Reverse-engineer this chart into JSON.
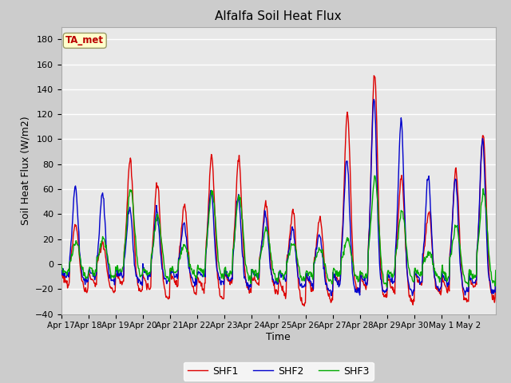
{
  "title": "Alfalfa Soil Heat Flux",
  "ylabel": "Soil Heat Flux (W/m2)",
  "xlabel": "Time",
  "ylim": [
    -40,
    190
  ],
  "yticks": [
    -40,
    -20,
    0,
    20,
    40,
    60,
    80,
    100,
    120,
    140,
    160,
    180
  ],
  "colors": {
    "SHF1": "#dd0000",
    "SHF2": "#0000cc",
    "SHF3": "#00aa00"
  },
  "annotation_text": "TA_met",
  "annotation_color": "#bb0000",
  "annotation_bg": "#ffffcc",
  "annotation_edge": "#999966",
  "fig_bg": "#cccccc",
  "plot_bg": "#e8e8e8",
  "grid_color": "#ffffff",
  "tick_labels": [
    "Apr 17",
    "Apr 18",
    "Apr 19",
    "Apr 20",
    "Apr 21",
    "Apr 22",
    "Apr 23",
    "Apr 24",
    "Apr 25",
    "Apr 26",
    "Apr 27",
    "Apr 28",
    "Apr 29",
    "Apr 30",
    "May 1",
    "May 2"
  ],
  "num_days": 16,
  "pts_per_day": 48
}
